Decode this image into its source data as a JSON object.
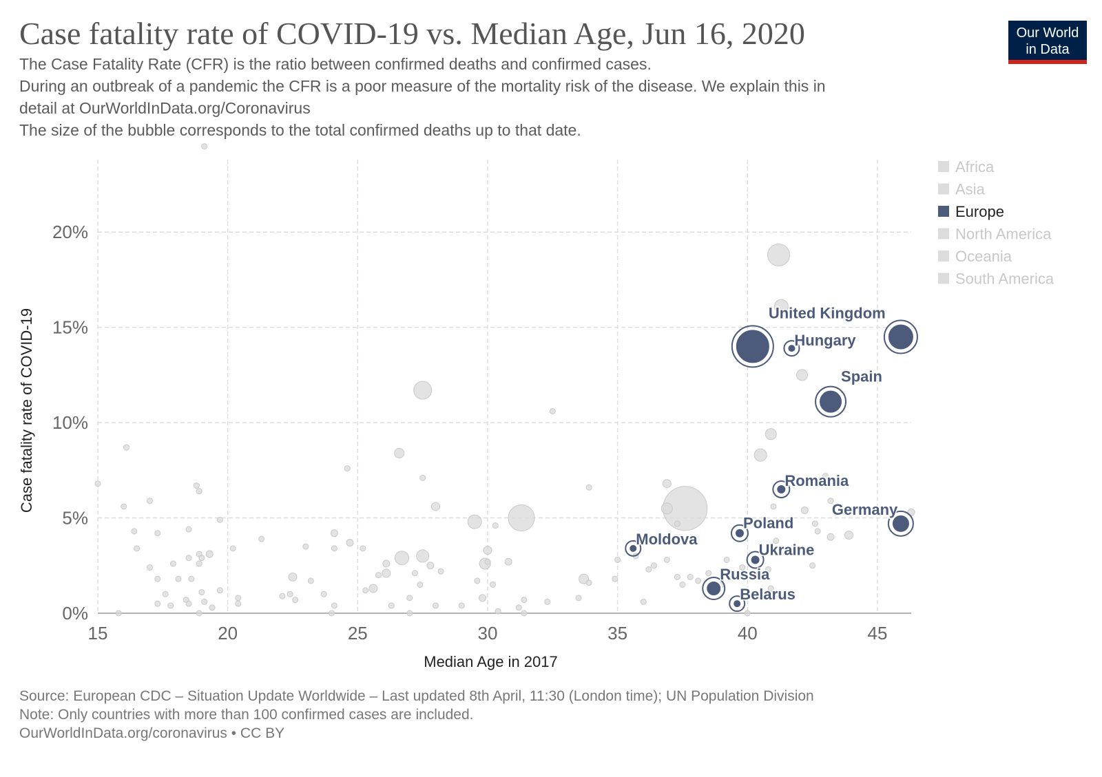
{
  "header": {
    "title": "Case fatality rate of COVID-19 vs. Median Age, Jun 16, 2020",
    "subtitle_lines": [
      "The Case Fatality Rate (CFR) is the ratio between confirmed deaths and confirmed cases.",
      "During an outbreak of a pandemic the CFR is a poor measure of the mortality risk of the disease. We explain this in",
      "detail at OurWorldInData.org/Coronavirus",
      "The size of the bubble corresponds to the total confirmed deaths up to that date."
    ]
  },
  "logo": {
    "line1": "Our World",
    "line2": "in Data"
  },
  "footer": {
    "source": "Source: European CDC – Situation Update Worldwide – Last updated 8th April, 11:30 (London time); UN Population Division",
    "note": "Note: Only countries with more than 100 confirmed cases are included.",
    "credit": "OurWorldInData.org/coronavirus • CC BY"
  },
  "colors": {
    "europe": "#4c5a7b",
    "other": "#d9d9d9",
    "grid": "#dddddd",
    "text": "#555555"
  },
  "chart_data": {
    "type": "scatter",
    "title": "Case fatality rate of COVID-19 vs. Median Age, Jun 16, 2020",
    "xlabel": "Median Age in 2017",
    "ylabel": "Case fatality rate of COVID-19",
    "xlim": [
      15,
      46.3
    ],
    "ylim": [
      0,
      23.8
    ],
    "x_ticks": [
      15,
      20,
      25,
      30,
      35,
      40,
      45
    ],
    "y_ticks": [
      0,
      5,
      10,
      15,
      20
    ],
    "y_tick_labels": [
      "0%",
      "5%",
      "10%",
      "15%",
      "20%"
    ],
    "grid": true,
    "legend_position": "right",
    "legend": [
      {
        "name": "Africa",
        "active": false
      },
      {
        "name": "Asia",
        "active": false
      },
      {
        "name": "Europe",
        "active": true
      },
      {
        "name": "North America",
        "active": false
      },
      {
        "name": "Oceania",
        "active": false
      },
      {
        "name": "South America",
        "active": false
      }
    ],
    "size_variable": "total confirmed deaths",
    "europe_points": [
      {
        "label": "United Kingdom",
        "x": 40.2,
        "y": 14.0,
        "size": 25
      },
      {
        "label": "Hungary",
        "x": 41.7,
        "y": 13.9,
        "size": 6
      },
      {
        "label": "Spain",
        "x": 43.2,
        "y": 11.1,
        "size": 17
      },
      {
        "label": "Romania",
        "x": 41.3,
        "y": 6.5,
        "size": 7
      },
      {
        "label": "Germany",
        "x": 45.9,
        "y": 4.7,
        "size": 13
      },
      {
        "label": "Poland",
        "x": 39.7,
        "y": 4.2,
        "size": 7
      },
      {
        "label": "Moldova",
        "x": 35.6,
        "y": 3.4,
        "size": 6
      },
      {
        "label": "Ukraine",
        "x": 40.3,
        "y": 2.8,
        "size": 7
      },
      {
        "label": "Russia",
        "x": 38.7,
        "y": 1.3,
        "size": 11
      },
      {
        "label": "Belarus",
        "x": 39.6,
        "y": 0.5,
        "size": 6
      },
      {
        "label": "",
        "x": 45.9,
        "y": 14.5,
        "size": 19
      }
    ],
    "other_points": [
      [
        19.1,
        24.5,
        4
      ],
      [
        41.2,
        18.8,
        16
      ],
      [
        41.3,
        16.1,
        10
      ],
      [
        42.1,
        12.5,
        8
      ],
      [
        27.5,
        11.7,
        13
      ],
      [
        32.5,
        10.6,
        4
      ],
      [
        40.9,
        9.4,
        8
      ],
      [
        40.5,
        8.3,
        9
      ],
      [
        26.6,
        8.4,
        7
      ],
      [
        16.1,
        8.7,
        4
      ],
      [
        15.0,
        6.8,
        4
      ],
      [
        24.6,
        7.6,
        4
      ],
      [
        27.5,
        7.1,
        4
      ],
      [
        33.9,
        6.6,
        4
      ],
      [
        18.8,
        6.7,
        4
      ],
      [
        18.9,
        6.4,
        4
      ],
      [
        17.0,
        5.9,
        4
      ],
      [
        16.0,
        5.6,
        4
      ],
      [
        28.0,
        5.6,
        6
      ],
      [
        31.3,
        5.0,
        19
      ],
      [
        37.6,
        5.5,
        32
      ],
      [
        36.9,
        5.5,
        8
      ],
      [
        36.9,
        6.8,
        6
      ],
      [
        37.3,
        4.7,
        4
      ],
      [
        41.0,
        5.6,
        4
      ],
      [
        42.2,
        5.4,
        5
      ],
      [
        42.6,
        4.7,
        4
      ],
      [
        43.0,
        7.2,
        4
      ],
      [
        43.2,
        5.9,
        4
      ],
      [
        46.3,
        5.3,
        5
      ],
      [
        43.9,
        4.1,
        6
      ],
      [
        43.2,
        4.0,
        5
      ],
      [
        42.7,
        4.3,
        4
      ],
      [
        41.1,
        3.8,
        4
      ],
      [
        29.5,
        4.8,
        10
      ],
      [
        30.0,
        3.3,
        6
      ],
      [
        30.3,
        4.6,
        4
      ],
      [
        19.7,
        4.9,
        4
      ],
      [
        16.4,
        4.3,
        4
      ],
      [
        17.3,
        4.2,
        4
      ],
      [
        18.5,
        4.4,
        4
      ],
      [
        21.3,
        3.9,
        4
      ],
      [
        23.0,
        3.5,
        4
      ],
      [
        24.1,
        4.2,
        5
      ],
      [
        24.1,
        3.4,
        4
      ],
      [
        24.7,
        3.7,
        5
      ],
      [
        25.2,
        3.4,
        4
      ],
      [
        26.7,
        2.9,
        10
      ],
      [
        27.5,
        3.0,
        9
      ],
      [
        16.5,
        3.4,
        4
      ],
      [
        17.0,
        2.4,
        4
      ],
      [
        18.5,
        2.9,
        4
      ],
      [
        18.9,
        3.1,
        4
      ],
      [
        19.0,
        2.9,
        4
      ],
      [
        19.3,
        3.1,
        5
      ],
      [
        20.2,
        3.4,
        4
      ],
      [
        26.1,
        2.6,
        5
      ],
      [
        25.8,
        2.0,
        4
      ],
      [
        26.1,
        2.1,
        6
      ],
      [
        27.8,
        2.5,
        5
      ],
      [
        27.2,
        2.1,
        4
      ],
      [
        28.2,
        2.2,
        4
      ],
      [
        29.9,
        2.6,
        8
      ],
      [
        30.8,
        2.7,
        5
      ],
      [
        30.0,
        2.7,
        4
      ],
      [
        22.5,
        1.9,
        6
      ],
      [
        23.2,
        1.7,
        4
      ],
      [
        18.1,
        1.8,
        4
      ],
      [
        18.6,
        1.8,
        4
      ],
      [
        17.3,
        1.8,
        4
      ],
      [
        18.9,
        2.6,
        4
      ],
      [
        17.9,
        2.6,
        4
      ],
      [
        19.0,
        1.1,
        4
      ],
      [
        19.7,
        1.2,
        4
      ],
      [
        22.1,
        0.9,
        4
      ],
      [
        22.4,
        1.0,
        4
      ],
      [
        22.6,
        0.7,
        4
      ],
      [
        23.7,
        1.0,
        4
      ],
      [
        24.1,
        0.4,
        4
      ],
      [
        25.3,
        1.2,
        4
      ],
      [
        25.6,
        1.3,
        6
      ],
      [
        26.3,
        0.4,
        4
      ],
      [
        27.0,
        0.8,
        4
      ],
      [
        27.4,
        1.5,
        4
      ],
      [
        28.0,
        0.4,
        4
      ],
      [
        29.0,
        0.4,
        4
      ],
      [
        29.6,
        1.7,
        4
      ],
      [
        29.8,
        0.8,
        5
      ],
      [
        30.2,
        1.5,
        4
      ],
      [
        30.4,
        0.1,
        4
      ],
      [
        31.2,
        0.3,
        4
      ],
      [
        31.4,
        0.7,
        4
      ],
      [
        32.3,
        0.6,
        4
      ],
      [
        33.5,
        0.8,
        4
      ],
      [
        33.7,
        1.8,
        7
      ],
      [
        33.9,
        1.6,
        4
      ],
      [
        35.0,
        2.8,
        4
      ],
      [
        35.7,
        3.0,
        4
      ],
      [
        36.2,
        2.3,
        4
      ],
      [
        36.0,
        0.6,
        4
      ],
      [
        36.9,
        2.8,
        4
      ],
      [
        37.3,
        1.9,
        4
      ],
      [
        37.5,
        1.5,
        4
      ],
      [
        37.8,
        1.9,
        4
      ],
      [
        38.1,
        1.7,
        4
      ],
      [
        38.5,
        2.1,
        4
      ],
      [
        39.2,
        2.8,
        4
      ],
      [
        39.0,
        1.5,
        4
      ],
      [
        39.8,
        2.4,
        4
      ],
      [
        40.8,
        2.3,
        4
      ],
      [
        42.5,
        2.5,
        4
      ],
      [
        40.9,
        1.3,
        4
      ],
      [
        17.6,
        1.0,
        4
      ],
      [
        17.3,
        0.5,
        4
      ],
      [
        17.8,
        0.4,
        4
      ],
      [
        18.4,
        0.7,
        4
      ],
      [
        18.5,
        0.5,
        4
      ],
      [
        19.1,
        0.6,
        4
      ],
      [
        19.4,
        0.3,
        4
      ],
      [
        20.4,
        0.8,
        4
      ],
      [
        20.4,
        0.5,
        4
      ],
      [
        15.8,
        0.0,
        4
      ],
      [
        18.9,
        0.0,
        4
      ],
      [
        24.0,
        0.0,
        4
      ],
      [
        27.0,
        0.0,
        4
      ],
      [
        31.4,
        0.0,
        4
      ],
      [
        40.0,
        0.0,
        4
      ],
      [
        34.9,
        1.8,
        4
      ],
      [
        36.4,
        2.5,
        4
      ]
    ]
  }
}
